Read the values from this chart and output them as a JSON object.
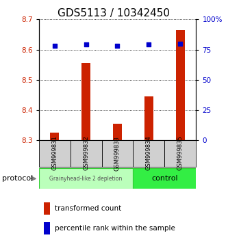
{
  "title": "GDS5113 / 10342450",
  "samples": [
    "GSM999831",
    "GSM999832",
    "GSM999833",
    "GSM999834",
    "GSM999835"
  ],
  "transformed_counts": [
    8.325,
    8.555,
    8.355,
    8.445,
    8.665
  ],
  "percentile_ranks": [
    78,
    79,
    78,
    79,
    80
  ],
  "ylim_left": [
    8.3,
    8.7
  ],
  "ylim_right": [
    0,
    100
  ],
  "yticks_left": [
    8.3,
    8.4,
    8.5,
    8.6,
    8.7
  ],
  "yticks_right": [
    0,
    25,
    50,
    75,
    100
  ],
  "bar_color": "#cc2200",
  "dot_color": "#0000cc",
  "groups": [
    {
      "label": "Grainyhead-like 2 depletion",
      "n_samples": 3,
      "color": "#bbffbb",
      "border": "#33cc33",
      "font_size": 5.5
    },
    {
      "label": "control",
      "n_samples": 2,
      "color": "#33ee44",
      "border": "#33cc33",
      "font_size": 8
    }
  ],
  "protocol_label": "protocol",
  "legend_bar_label": "transformed count",
  "legend_dot_label": "percentile rank within the sample",
  "background_color": "#ffffff",
  "grid_color": "#000000",
  "tick_label_color_left": "#cc2200",
  "tick_label_color_right": "#0000cc",
  "bar_bottom": 8.3,
  "bar_width": 0.3,
  "title_fontsize": 11,
  "sample_label_fontsize": 6,
  "legend_fontsize": 7.5
}
